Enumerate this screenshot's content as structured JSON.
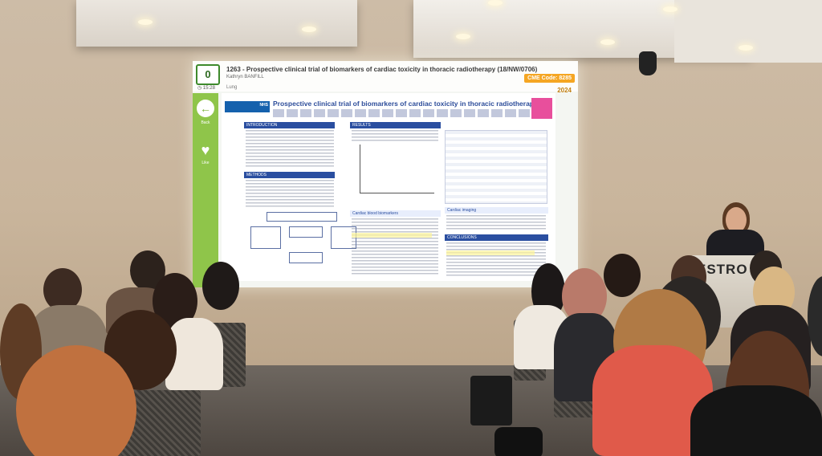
{
  "screen": {
    "counter": "0",
    "time": "15:28",
    "abstract_title": "1263 - Prospective clinical trial of biomarkers of cardiac toxicity in thoracic radiotherapy (18/NW/0706)",
    "author": "Kathryn BANFILL",
    "topic": "Lung",
    "cme_code": "CME Code: 8285",
    "year": "2024",
    "sidebar": [
      {
        "label": "Back",
        "icon": "back-arrow-icon"
      },
      {
        "label": "Like",
        "icon": "heart-icon"
      }
    ]
  },
  "poster": {
    "title": "Prospective clinical trial of biomarkers of cardiac toxicity in thoracic radiotherapy",
    "sections": {
      "introduction": "INTRODUCTION",
      "methods": "METHODS",
      "results": "RESULTS",
      "cardiac_biomarkers": "Cardiac blood biomarkers",
      "cardiac_imaging": "Cardiac imaging",
      "conclusions": "CONCLUSIONS"
    }
  },
  "podium": {
    "label": "ESTRO"
  },
  "colors": {
    "sidebar_green": "#8fc54a",
    "poster_blue": "#2a4ea0",
    "cme_orange": "#f5a623"
  }
}
